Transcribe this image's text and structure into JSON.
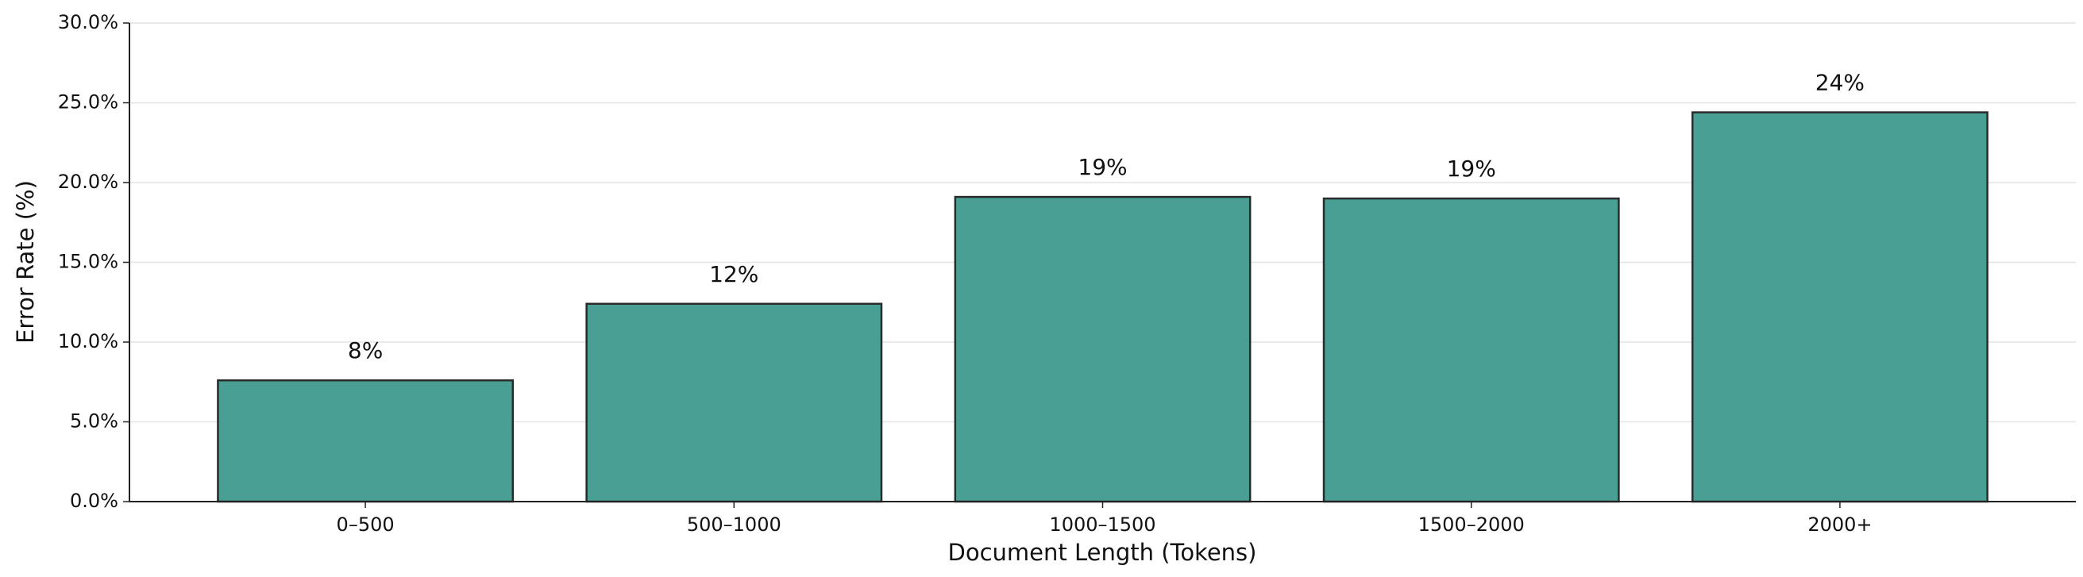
{
  "chart_data": {
    "type": "bar",
    "x_label": "Document Length (Tokens)",
    "y_label": "Error Rate (%)",
    "categories": [
      "0–500",
      "500–1000",
      "1000–1500",
      "1500–2000",
      "2000+"
    ],
    "values": [
      7.6,
      12.4,
      19.1,
      19.0,
      24.4
    ],
    "value_labels": [
      "8%",
      "12%",
      "19%",
      "19%",
      "24%"
    ],
    "color": "#4a9f94",
    "edge_color": "#2b2b2b",
    "ylim": [
      0,
      30
    ],
    "yticks": [
      {
        "value": 0,
        "label": "0.0%"
      },
      {
        "value": 5,
        "label": "5.0%"
      },
      {
        "value": 10,
        "label": "10.0%"
      },
      {
        "value": 15,
        "label": "15.0%"
      },
      {
        "value": 20,
        "label": "20.0%"
      },
      {
        "value": 25,
        "label": "25.0%"
      },
      {
        "value": 30,
        "label": "30.0%"
      }
    ],
    "grid": true
  }
}
